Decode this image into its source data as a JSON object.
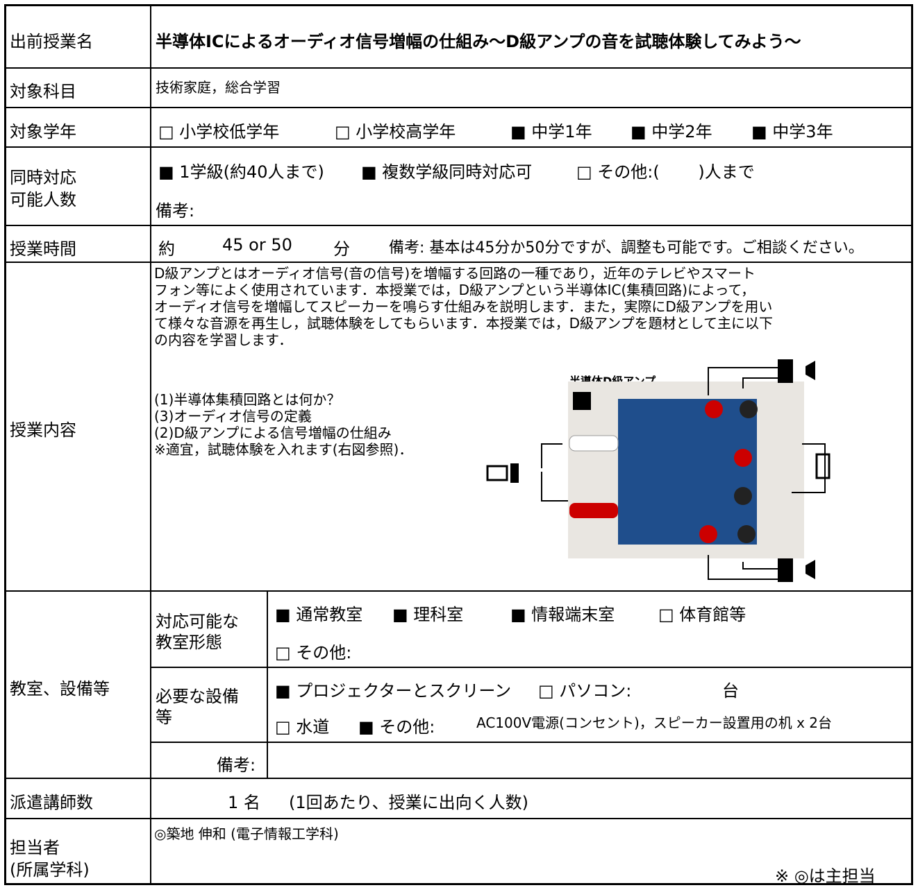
{
  "title": {
    "label": "出前授業名",
    "value": "半導体ICによるオーディオ信号増幅の仕組み～D級アンプの音を試聴体験してみよう～"
  },
  "subject": {
    "label": "対象科目",
    "value": "技術家庭，総合学習"
  },
  "grade": {
    "label": "対象学年",
    "options": [
      "□ 小学校低学年",
      "□ 小学校高学年",
      "■ 中学1年",
      "■ 中学2年",
      "■ 中学3年"
    ]
  },
  "capacity": {
    "label_lines": [
      "同時対応",
      "可能人数"
    ],
    "options": [
      "■ 1学級(約40人まで)",
      "■ 複数学級同時対応可",
      "□ その他:(　　 )人まで"
    ],
    "note": "備考:"
  },
  "time": {
    "label": "授業時間",
    "prefix": "約",
    "value": "45 or 50",
    "unit": "分",
    "note": "備考: 基本は45分か50分ですが、調整も可能です。ご相談ください。"
  },
  "content": {
    "label": "授業内容",
    "description_lines": [
      "D級アンプとはオーディオ信号(音の信号)を増幅する回路の一種であり，近年のテレビやスマート",
      "フォン等によく使用されています．本授業では，D級アンプという半導体IC(集積回路)によって，",
      "オーディオ信号を増幅してスピーカーを鳴らす仕組みを説明します．また，実際にD級アンプを用い",
      "て様々な音源を再生し，試聴体験をしてもらいます．本授業では，D級アンプを題材として主に以下",
      "の内容を学習します．"
    ],
    "items": [
      "(1)半導体集積回路とは何か？",
      "(3)オーディオ信号の定義",
      "(2)D級アンプによる信号増幅の仕組み",
      "※適宜，試聴体験を入れます(右図参照)．"
    ],
    "figure_caption": "半導体D級アンプ"
  },
  "facilities": {
    "label": "教室、設備等",
    "room": {
      "label_lines": [
        "対応可能な",
        "教室形態"
      ],
      "options": [
        "■ 通常教室",
        "■ 理科室",
        "■ 情報端末室",
        "□ 体育館等"
      ],
      "other": "□ その他:"
    },
    "equipment": {
      "label_lines": [
        "必要な設備",
        "等"
      ],
      "options": [
        "■ プロジェクターとスクリーン",
        "□ パソコン:",
        "台"
      ],
      "line2": [
        "□ 水道",
        "■ その他:",
        "AC100V電源(コンセント)，スピーカー設置用の机 x 2台"
      ]
    },
    "note_label": "備考:"
  },
  "instructors": {
    "label": "派遣講師数",
    "count": "1 名",
    "note": "(1回あたり、授業に出向く人数)"
  },
  "contact": {
    "label_lines": [
      "担当者",
      "(所属学科)"
    ],
    "name": "◎築地 伸和 (電子情報工学科)",
    "footnote": "※ ◎は主担当"
  }
}
